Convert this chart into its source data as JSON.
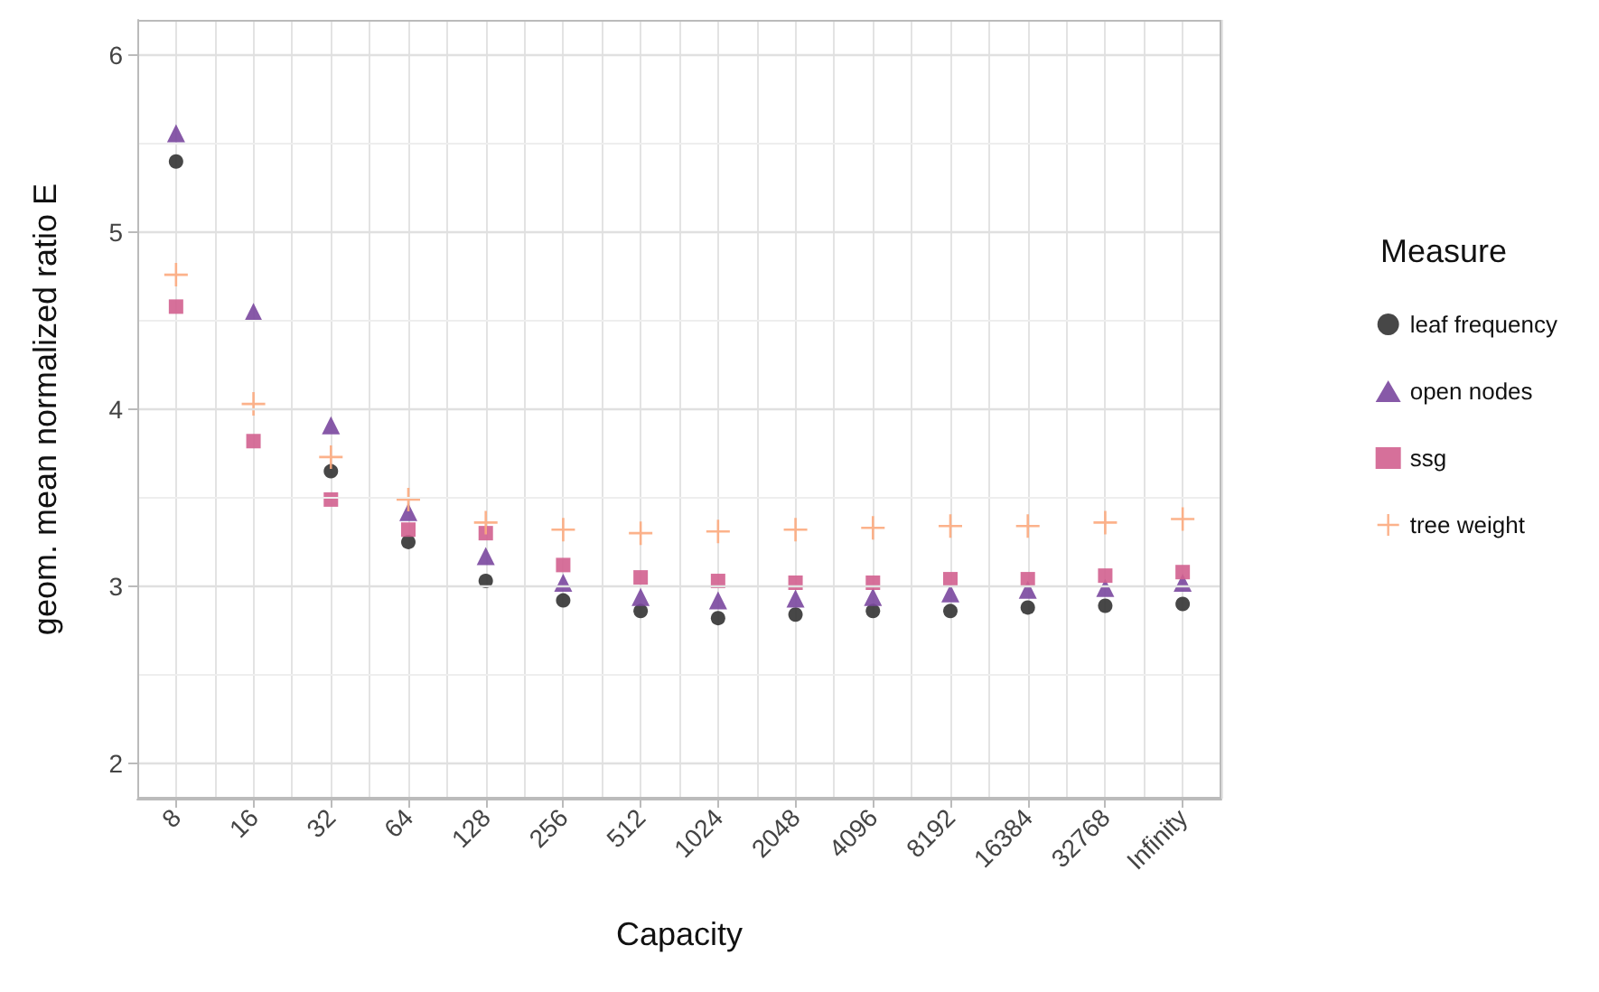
{
  "chart_data": {
    "type": "scatter",
    "xlabel": "Capacity",
    "ylabel": "geom. mean normalized ratio E",
    "legend_title": "Measure",
    "legend": "right",
    "grid": true,
    "categories": [
      "8",
      "16",
      "32",
      "64",
      "128",
      "256",
      "512",
      "1024",
      "2048",
      "4096",
      "8192",
      "16384",
      "32768",
      "Infinity"
    ],
    "ylim": [
      1.8,
      6.2
    ],
    "yticks": [
      2,
      3,
      4,
      5,
      6
    ],
    "series": [
      {
        "name": "leaf frequency",
        "color": "#333333",
        "marker": "circle",
        "values": [
          5.4,
          null,
          3.65,
          3.25,
          3.03,
          2.92,
          2.86,
          2.82,
          2.84,
          2.86,
          2.86,
          2.88,
          2.89,
          2.9
        ]
      },
      {
        "name": "open nodes",
        "color": "#7a479e",
        "marker": "triangle",
        "values": [
          5.56,
          4.55,
          3.91,
          3.42,
          3.17,
          3.02,
          2.94,
          2.92,
          2.93,
          2.94,
          2.96,
          2.98,
          2.99,
          3.02
        ]
      },
      {
        "name": "ssg",
        "color": "#d1608f",
        "marker": "square",
        "values": [
          4.58,
          3.82,
          3.49,
          3.32,
          3.3,
          3.12,
          3.05,
          3.03,
          3.02,
          3.02,
          3.04,
          3.04,
          3.06,
          3.08
        ]
      },
      {
        "name": "tree weight",
        "color": "#fcaa7e",
        "marker": "cross",
        "values": [
          4.76,
          4.03,
          3.73,
          3.49,
          3.36,
          3.32,
          3.3,
          3.31,
          3.32,
          3.33,
          3.34,
          3.34,
          3.36,
          3.38
        ]
      }
    ]
  }
}
